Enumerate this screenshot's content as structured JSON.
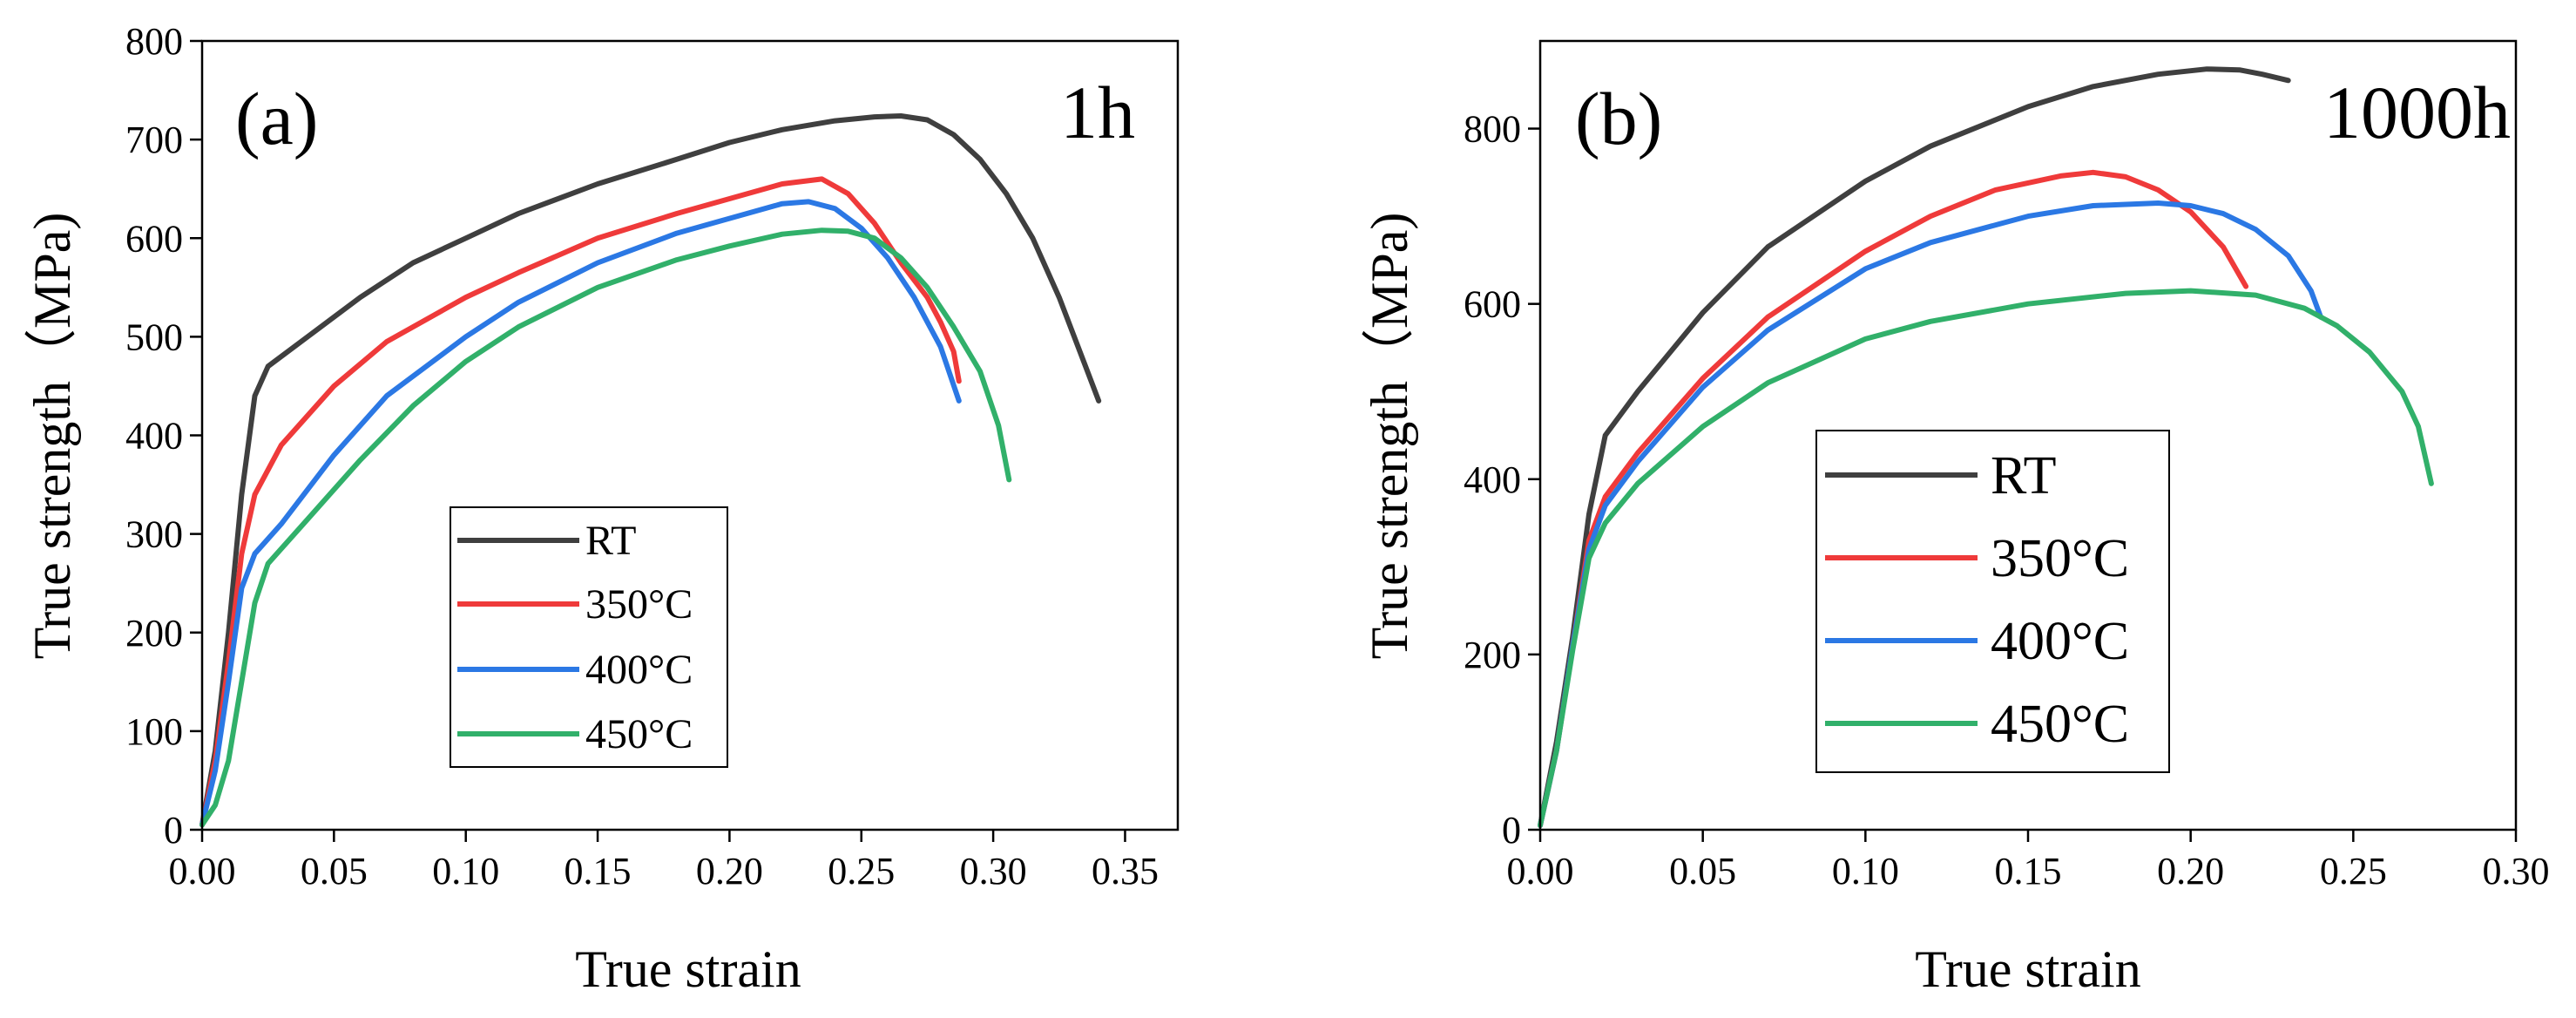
{
  "colors": {
    "RT": "#3f3f3f",
    "350C": "#ef3a3a",
    "400C": "#2b78e4",
    "450C": "#31b06a"
  },
  "chart_data": [
    {
      "type": "line",
      "panel": "(a)",
      "annotation": "1h",
      "xlabel": "True strain",
      "ylabel": "True strength（MPa)",
      "xlim": [
        0,
        0.37
      ],
      "ylim": [
        0,
        800
      ],
      "xticks": [
        0.0,
        0.05,
        0.1,
        0.15,
        0.2,
        0.25,
        0.3,
        0.35
      ],
      "xtick_labels": [
        "0.00",
        "0.05",
        "0.10",
        "0.15",
        "0.20",
        "0.25",
        "0.30",
        "0.35"
      ],
      "yticks": [
        0,
        100,
        200,
        300,
        400,
        500,
        600,
        700,
        800
      ],
      "ytick_labels": [
        "0",
        "100",
        "200",
        "300",
        "400",
        "500",
        "600",
        "700",
        "800"
      ],
      "legend_position": "lower-center",
      "series": [
        {
          "name": "RT",
          "key": "RT",
          "x": [
            0.0,
            0.005,
            0.01,
            0.015,
            0.02,
            0.025,
            0.04,
            0.06,
            0.08,
            0.1,
            0.12,
            0.15,
            0.18,
            0.2,
            0.22,
            0.24,
            0.255,
            0.265,
            0.275,
            0.285,
            0.295,
            0.305,
            0.315,
            0.325,
            0.335,
            0.34
          ],
          "y": [
            5,
            80,
            200,
            340,
            440,
            470,
            500,
            540,
            575,
            600,
            625,
            655,
            680,
            697,
            710,
            719,
            723,
            724,
            720,
            705,
            680,
            645,
            600,
            540,
            470,
            435
          ]
        },
        {
          "name": "350°C",
          "key": "350C",
          "x": [
            0.0,
            0.005,
            0.01,
            0.015,
            0.02,
            0.03,
            0.05,
            0.07,
            0.1,
            0.12,
            0.15,
            0.18,
            0.2,
            0.22,
            0.235,
            0.245,
            0.255,
            0.265,
            0.275,
            0.28,
            0.285,
            0.287
          ],
          "y": [
            5,
            70,
            170,
            280,
            340,
            390,
            450,
            495,
            540,
            565,
            600,
            625,
            640,
            655,
            660,
            645,
            615,
            575,
            540,
            515,
            485,
            455
          ]
        },
        {
          "name": "400°C",
          "key": "400C",
          "x": [
            0.0,
            0.005,
            0.01,
            0.015,
            0.02,
            0.03,
            0.05,
            0.07,
            0.1,
            0.12,
            0.15,
            0.18,
            0.2,
            0.22,
            0.23,
            0.24,
            0.25,
            0.26,
            0.27,
            0.28,
            0.287
          ],
          "y": [
            5,
            60,
            150,
            245,
            280,
            310,
            380,
            440,
            500,
            535,
            575,
            605,
            620,
            635,
            637,
            630,
            610,
            580,
            540,
            490,
            435
          ]
        },
        {
          "name": "450°C",
          "key": "450C",
          "x": [
            0.0,
            0.005,
            0.01,
            0.015,
            0.02,
            0.025,
            0.04,
            0.06,
            0.08,
            0.1,
            0.12,
            0.15,
            0.18,
            0.2,
            0.22,
            0.235,
            0.245,
            0.255,
            0.265,
            0.275,
            0.285,
            0.295,
            0.302,
            0.306
          ],
          "y": [
            5,
            25,
            70,
            150,
            230,
            270,
            315,
            375,
            430,
            475,
            510,
            550,
            578,
            592,
            604,
            608,
            607,
            600,
            580,
            550,
            510,
            465,
            410,
            355
          ]
        }
      ]
    },
    {
      "type": "line",
      "panel": "(b)",
      "annotation": "1000h",
      "xlabel": "True strain",
      "ylabel": "True strength（MPa)",
      "xlim": [
        0,
        0.3
      ],
      "ylim": [
        0,
        900
      ],
      "xticks": [
        0.0,
        0.05,
        0.1,
        0.15,
        0.2,
        0.25,
        0.3
      ],
      "xtick_labels": [
        "0.00",
        "0.05",
        "0.10",
        "0.15",
        "0.20",
        "0.25",
        "0.30"
      ],
      "yticks": [
        0,
        200,
        400,
        600,
        800
      ],
      "ytick_labels": [
        "0",
        "200",
        "400",
        "600",
        "800"
      ],
      "legend_position": "center-left",
      "series": [
        {
          "name": "RT",
          "key": "RT",
          "x": [
            0.0,
            0.005,
            0.01,
            0.015,
            0.02,
            0.03,
            0.05,
            0.07,
            0.1,
            0.12,
            0.15,
            0.17,
            0.19,
            0.205,
            0.215,
            0.222,
            0.23
          ],
          "y": [
            5,
            100,
            220,
            360,
            450,
            500,
            590,
            665,
            740,
            780,
            825,
            848,
            862,
            868,
            867,
            862,
            855
          ]
        },
        {
          "name": "350°C",
          "key": "350C",
          "x": [
            0.0,
            0.005,
            0.01,
            0.015,
            0.02,
            0.03,
            0.05,
            0.07,
            0.1,
            0.12,
            0.14,
            0.16,
            0.17,
            0.18,
            0.19,
            0.2,
            0.21,
            0.217
          ],
          "y": [
            5,
            90,
            210,
            330,
            380,
            430,
            515,
            585,
            660,
            700,
            730,
            746,
            750,
            745,
            730,
            705,
            665,
            620
          ]
        },
        {
          "name": "400°C",
          "key": "400C",
          "x": [
            0.0,
            0.005,
            0.01,
            0.015,
            0.02,
            0.03,
            0.05,
            0.07,
            0.1,
            0.12,
            0.15,
            0.17,
            0.19,
            0.2,
            0.21,
            0.22,
            0.23,
            0.237,
            0.24
          ],
          "y": [
            5,
            90,
            210,
            320,
            370,
            420,
            505,
            570,
            640,
            670,
            700,
            712,
            715,
            712,
            703,
            685,
            655,
            615,
            585
          ]
        },
        {
          "name": "450°C",
          "key": "450C",
          "x": [
            0.0,
            0.005,
            0.01,
            0.015,
            0.02,
            0.03,
            0.05,
            0.07,
            0.1,
            0.12,
            0.15,
            0.18,
            0.2,
            0.22,
            0.235,
            0.245,
            0.255,
            0.265,
            0.27,
            0.274
          ],
          "y": [
            5,
            90,
            205,
            310,
            350,
            395,
            460,
            510,
            560,
            580,
            600,
            612,
            615,
            610,
            595,
            575,
            545,
            500,
            460,
            395
          ]
        }
      ]
    }
  ]
}
